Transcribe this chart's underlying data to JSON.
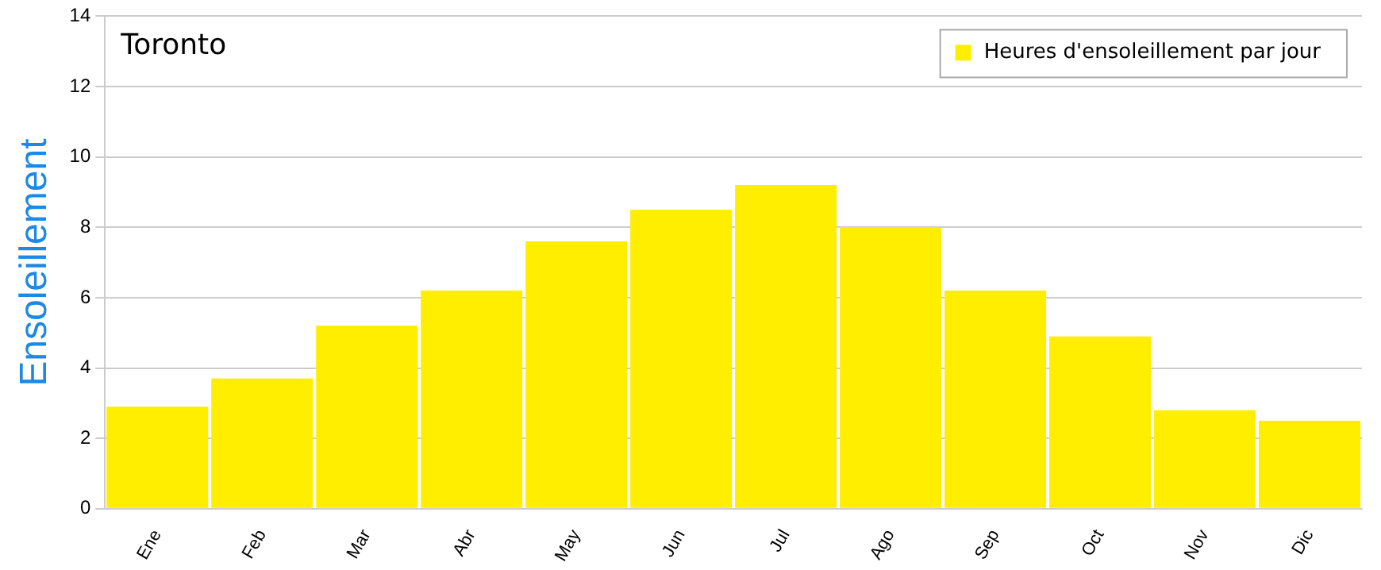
{
  "chart_data": {
    "type": "bar",
    "title": "Toronto",
    "ylabel": "Ensoleillement",
    "categories": [
      "Ene",
      "Feb",
      "Mar",
      "Abr",
      "May",
      "Jun",
      "Jul",
      "Ago",
      "Sep",
      "Oct",
      "Nov",
      "Dic"
    ],
    "series": [
      {
        "name": "Heures d'ensoleillement par jour",
        "color": "#ffee00",
        "values": [
          2.9,
          3.7,
          5.2,
          6.2,
          7.6,
          8.5,
          9.2,
          8.0,
          6.2,
          4.9,
          2.8,
          2.5
        ]
      }
    ],
    "ylim": [
      0,
      14
    ],
    "yticks": [
      0,
      2,
      4,
      6,
      8,
      10,
      12,
      14
    ],
    "grid": "y",
    "legend": "top right"
  }
}
